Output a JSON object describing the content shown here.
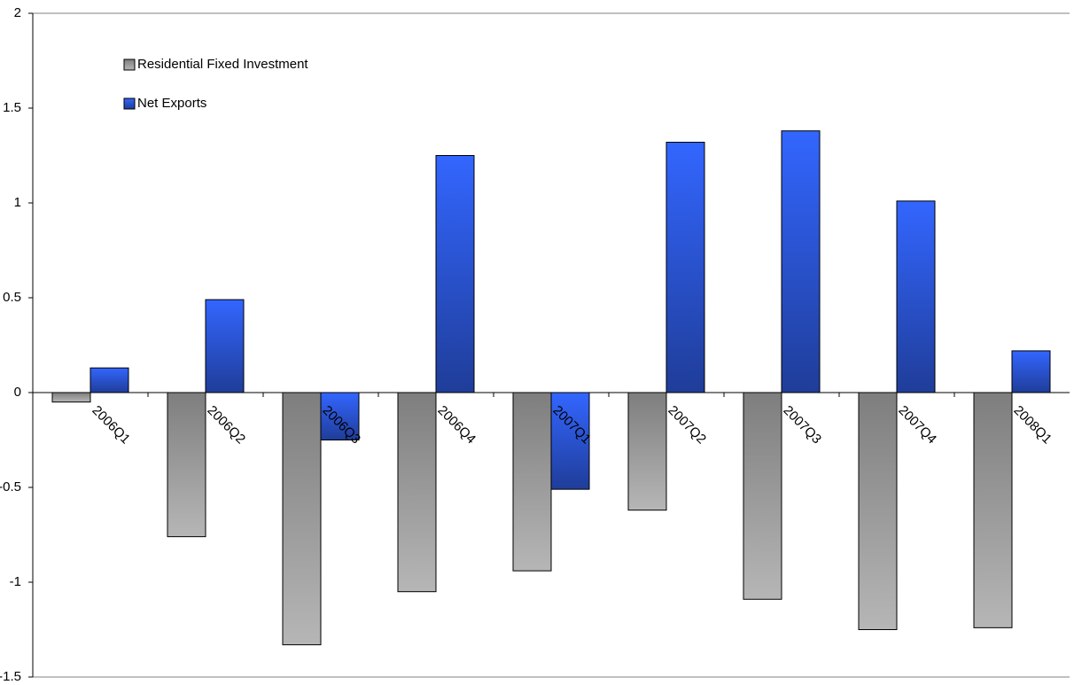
{
  "chart_data": {
    "type": "bar",
    "categories": [
      "2006Q1",
      "2006Q2",
      "2006Q3",
      "2006Q4",
      "2007Q1",
      "2007Q2",
      "2007Q3",
      "2007Q4",
      "2008Q1"
    ],
    "series": [
      {
        "name": "Residential Fixed Investment",
        "color": "#8c8c8c",
        "values": [
          -0.05,
          -0.76,
          -1.33,
          -1.05,
          -0.94,
          -0.62,
          -1.09,
          -1.25,
          -1.24
        ]
      },
      {
        "name": "Net Exports",
        "color": "#3366ff",
        "values": [
          0.13,
          0.49,
          -0.25,
          1.25,
          -0.51,
          1.32,
          1.38,
          1.01,
          0.22
        ]
      }
    ],
    "ylim": [
      -1.5,
      2
    ],
    "yticks": [
      -1.5,
      -1,
      -0.5,
      0,
      0.5,
      1,
      1.5,
      2
    ]
  }
}
